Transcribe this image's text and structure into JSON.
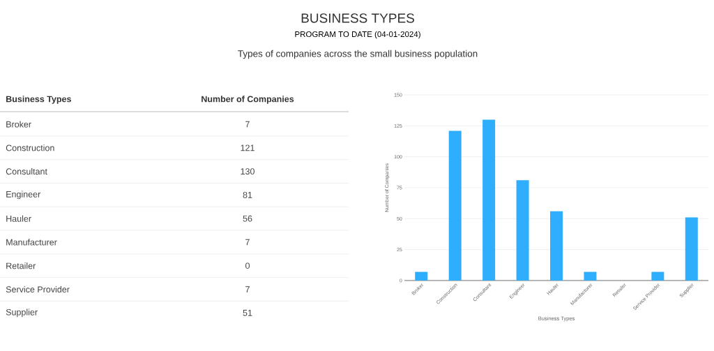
{
  "chart_data": [
    {
      "type": "other",
      "title": "BUSINESS TYPES",
      "subtitle": "PROGRAM TO DATE (04-01-2024)",
      "annotations": [
        "Types of companies across the small business population"
      ],
      "xlabel": "Business Types",
      "ylabel": "Number of Companies",
      "categories": [
        "Broker",
        "Construction",
        "Consultant",
        "Engineer",
        "Hauler",
        "Manufacturer",
        "Retailer",
        "Service Provider",
        "Supplier"
      ],
      "values": [
        7,
        121,
        130,
        81,
        56,
        7,
        0,
        7,
        51
      ],
      "value_labels": [
        "7",
        "121",
        "130",
        "81",
        "56",
        "7",
        "0",
        "7",
        "51"
      ]
    },
    {
      "type": "bar",
      "xlabel": "Business Types",
      "ylabel": "Number of Companies",
      "categories": [
        "Broker",
        "Construction",
        "Consultant",
        "Engineer",
        "Hauler",
        "Manufacturer",
        "Retailer",
        "Service Provider",
        "Supplier"
      ],
      "values": [
        7,
        121,
        130,
        81,
        56,
        7,
        0,
        7,
        51
      ],
      "color": "#2eaefc",
      "ylim": [
        0,
        150
      ],
      "yticks": [
        0,
        25,
        50,
        75,
        100,
        125,
        150
      ],
      "grid": "y"
    }
  ]
}
